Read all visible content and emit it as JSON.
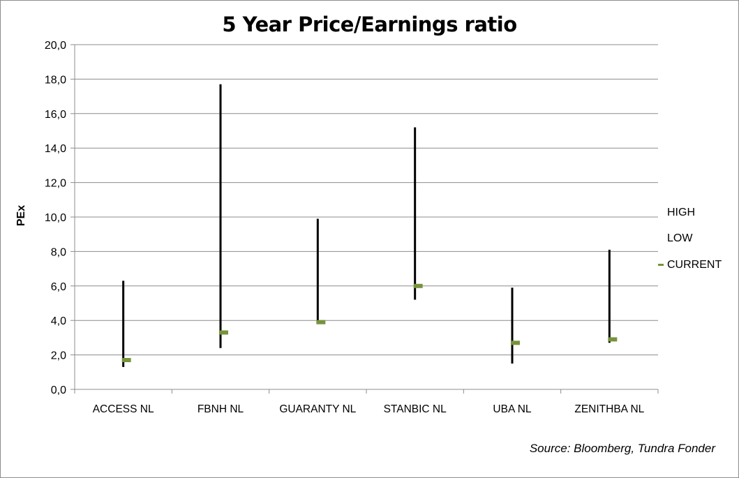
{
  "chart_data": {
    "type": "high-low-close",
    "title": "5 Year Price/Earnings ratio",
    "ylabel": "PEx",
    "xlabel": "",
    "ylim": [
      0,
      20
    ],
    "ytick_step": 2,
    "ytick_labels": [
      "0,0",
      "2,0",
      "4,0",
      "6,0",
      "8,0",
      "10,0",
      "12,0",
      "14,0",
      "16,0",
      "18,0",
      "20,0"
    ],
    "grid": true,
    "legend_position": "right",
    "categories": [
      "ACCESS NL",
      "FBNH NL",
      "GUARANTY NL",
      "STANBIC NL",
      "UBA NL",
      "ZENITHBA NL"
    ],
    "series": [
      {
        "name": "HIGH",
        "values": [
          6.3,
          17.7,
          9.9,
          15.2,
          5.9,
          8.1
        ],
        "color": "#000000"
      },
      {
        "name": "LOW",
        "values": [
          1.3,
          2.4,
          3.9,
          5.2,
          1.5,
          2.7
        ],
        "color": "#000000"
      },
      {
        "name": "CURRENT",
        "values": [
          1.7,
          3.3,
          3.9,
          6.0,
          2.7,
          2.9
        ],
        "color": "#77933c"
      }
    ]
  },
  "source_note": "Source: Bloomberg, Tundra Fonder"
}
